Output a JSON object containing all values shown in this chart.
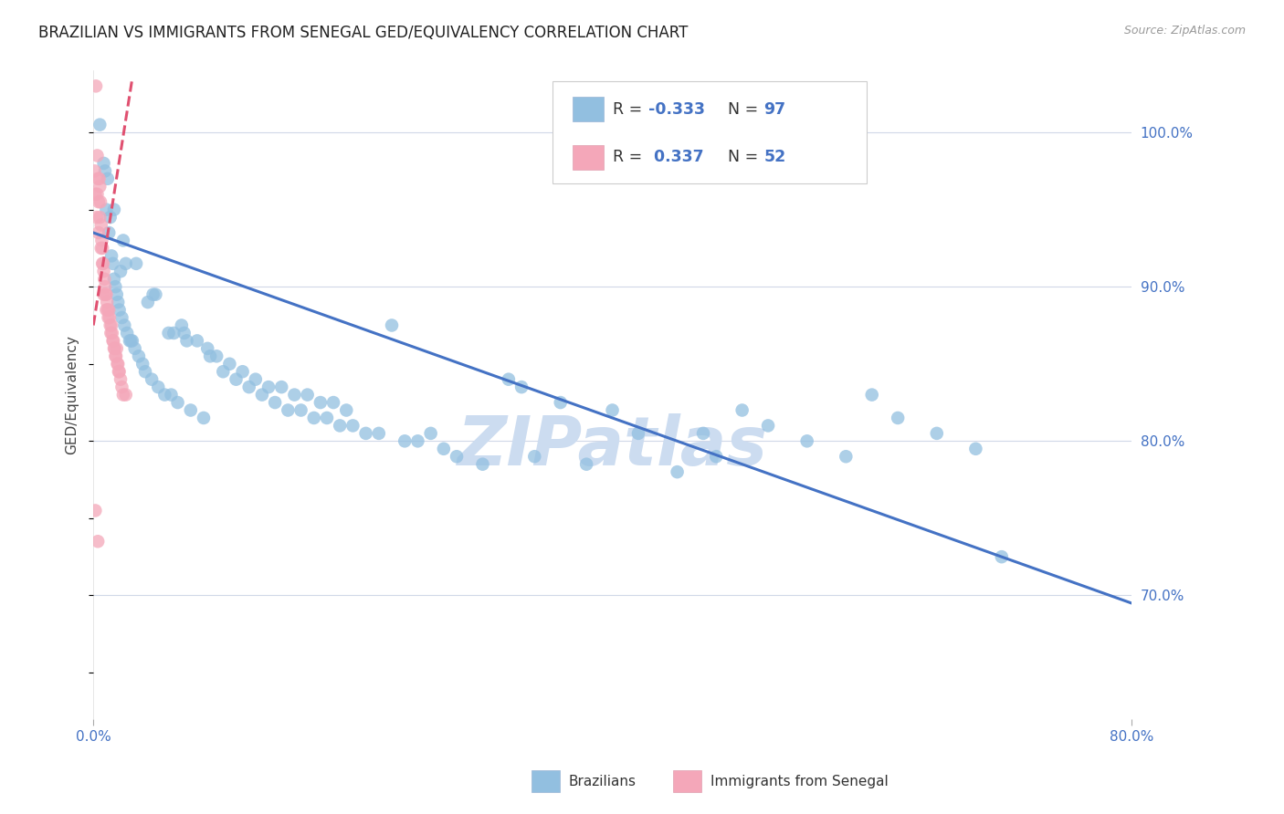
{
  "title": "BRAZILIAN VS IMMIGRANTS FROM SENEGAL GED/EQUIVALENCY CORRELATION CHART",
  "source": "Source: ZipAtlas.com",
  "ylabel": "GED/Equivalency",
  "xmin": 0.0,
  "xmax": 80.0,
  "ymin": 62.0,
  "ymax": 104.0,
  "yticks": [
    70.0,
    80.0,
    90.0,
    100.0
  ],
  "right_ytick_labels": [
    "70.0%",
    "80.0%",
    "90.0%",
    "100.0%"
  ],
  "blue_color": "#92bfe0",
  "pink_color": "#f4a7b9",
  "blue_line_color": "#4472c4",
  "pink_line_color": "#e05070",
  "axis_label_color": "#4472c4",
  "background_color": "#ffffff",
  "grid_color": "#d0d8e8",
  "watermark_text": "ZIPatlas",
  "watermark_color": "#ccdcf0",
  "blue_scatter_x": [
    0.5,
    0.8,
    1.0,
    1.2,
    1.4,
    1.5,
    1.6,
    1.7,
    1.8,
    1.9,
    2.0,
    2.2,
    2.4,
    2.6,
    2.8,
    3.0,
    3.2,
    3.5,
    3.8,
    4.0,
    4.5,
    5.0,
    5.5,
    6.0,
    6.5,
    7.0,
    7.5,
    8.0,
    8.5,
    9.0,
    10.0,
    11.0,
    12.0,
    13.0,
    14.0,
    15.0,
    16.0,
    17.0,
    18.0,
    19.0,
    20.0,
    21.0,
    22.0,
    23.0,
    24.0,
    25.0,
    26.0,
    27.0,
    28.0,
    30.0,
    32.0,
    33.0,
    34.0,
    36.0,
    38.0,
    40.0,
    42.0,
    45.0,
    47.0,
    48.0,
    50.0,
    52.0,
    55.0,
    58.0,
    60.0,
    62.0,
    65.0,
    68.0,
    70.0,
    1.1,
    1.3,
    2.1,
    2.9,
    4.2,
    5.8,
    7.2,
    9.5,
    11.5,
    13.5,
    15.5,
    17.5,
    19.5,
    2.5,
    4.8,
    6.8,
    8.8,
    10.5,
    12.5,
    14.5,
    16.5,
    18.5,
    3.3,
    4.6,
    6.2,
    0.9,
    1.6,
    2.3
  ],
  "blue_scatter_y": [
    100.5,
    98.0,
    95.0,
    93.5,
    92.0,
    91.5,
    90.5,
    90.0,
    89.5,
    89.0,
    88.5,
    88.0,
    87.5,
    87.0,
    86.5,
    86.5,
    86.0,
    85.5,
    85.0,
    84.5,
    84.0,
    83.5,
    83.0,
    83.0,
    82.5,
    87.0,
    82.0,
    86.5,
    81.5,
    85.5,
    84.5,
    84.0,
    83.5,
    83.0,
    82.5,
    82.0,
    82.0,
    81.5,
    81.5,
    81.0,
    81.0,
    80.5,
    80.5,
    87.5,
    80.0,
    80.0,
    80.5,
    79.5,
    79.0,
    78.5,
    84.0,
    83.5,
    79.0,
    82.5,
    78.5,
    82.0,
    80.5,
    78.0,
    80.5,
    79.0,
    82.0,
    81.0,
    80.0,
    79.0,
    83.0,
    81.5,
    80.5,
    79.5,
    72.5,
    97.0,
    94.5,
    91.0,
    86.5,
    89.0,
    87.0,
    86.5,
    85.5,
    84.5,
    83.5,
    83.0,
    82.5,
    82.0,
    91.5,
    89.5,
    87.5,
    86.0,
    85.0,
    84.0,
    83.5,
    83.0,
    82.5,
    91.5,
    89.5,
    87.0,
    97.5,
    95.0,
    93.0
  ],
  "pink_scatter_x": [
    0.1,
    0.15,
    0.2,
    0.25,
    0.3,
    0.3,
    0.35,
    0.4,
    0.4,
    0.45,
    0.5,
    0.5,
    0.55,
    0.6,
    0.6,
    0.65,
    0.7,
    0.7,
    0.75,
    0.8,
    0.8,
    0.85,
    0.9,
    0.95,
    1.0,
    1.0,
    1.05,
    1.1,
    1.15,
    1.2,
    1.25,
    1.3,
    1.35,
    1.4,
    1.45,
    1.5,
    1.55,
    1.6,
    1.65,
    1.7,
    1.75,
    1.8,
    1.85,
    1.9,
    1.95,
    2.0,
    2.1,
    2.2,
    2.3,
    2.5,
    0.15,
    0.35
  ],
  "pink_scatter_y": [
    97.5,
    96.0,
    103.0,
    94.5,
    98.5,
    96.0,
    97.0,
    95.5,
    93.5,
    97.0,
    96.5,
    94.5,
    95.5,
    94.0,
    92.5,
    93.0,
    92.5,
    91.5,
    91.5,
    91.0,
    89.5,
    90.5,
    90.0,
    89.5,
    89.5,
    88.5,
    89.0,
    88.5,
    88.0,
    88.5,
    88.0,
    87.5,
    87.0,
    87.5,
    87.0,
    86.5,
    86.5,
    86.0,
    86.0,
    85.5,
    85.5,
    86.0,
    85.0,
    85.0,
    84.5,
    84.5,
    84.0,
    83.5,
    83.0,
    83.0,
    75.5,
    73.5
  ],
  "blue_trendline_x": [
    0.0,
    80.0
  ],
  "blue_trendline_y": [
    93.5,
    69.5
  ],
  "pink_trendline_x": [
    0.0,
    3.0
  ],
  "pink_trendline_y": [
    87.5,
    103.5
  ]
}
